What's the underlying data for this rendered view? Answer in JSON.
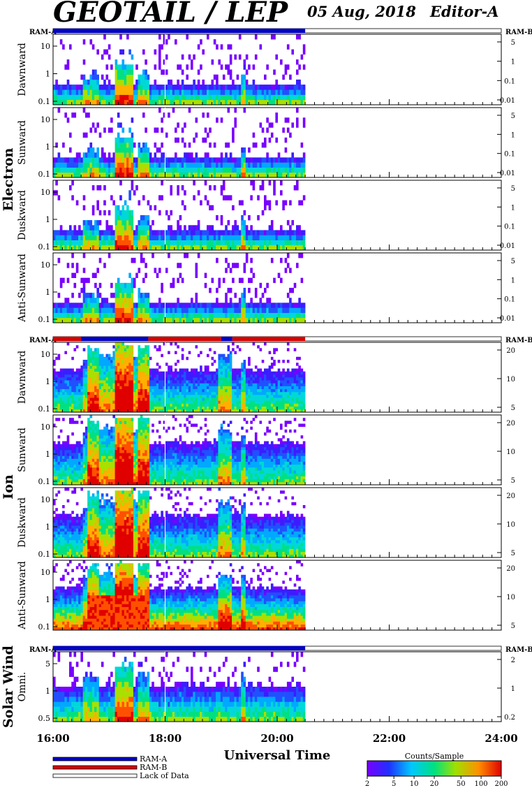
{
  "header": {
    "title": "GEOTAIL / LEP",
    "date": "05 Aug, 2018",
    "editor": "Editor-A"
  },
  "chart_data": {
    "type": "heatmap",
    "xlabel": "Universal Time",
    "x_ticks": [
      "16:00",
      "18:00",
      "20:00",
      "22:00",
      "24:00"
    ],
    "x_range_hours": [
      16,
      24
    ],
    "data_end_hour": 20.5,
    "ram_markers": {
      "left": "RAM-A",
      "right": "RAM-B"
    },
    "groups": [
      {
        "name": "Electron",
        "panels": [
          "Dawnward",
          "Sunward",
          "Duskward",
          "Anti-Sunward"
        ],
        "left_ticks": [
          "0.1",
          "1",
          "10"
        ],
        "right_ticks": [
          "0.01",
          "0.1",
          "1",
          "5"
        ],
        "ram_bar": [
          {
            "from": 16,
            "to": 20.5,
            "mode": "RAM-A"
          }
        ]
      },
      {
        "name": "Ion",
        "panels": [
          "Dawnward",
          "Sunward",
          "Duskward",
          "Anti-Sunward"
        ],
        "left_ticks": [
          "0.1",
          "1",
          "10"
        ],
        "right_ticks": [
          "5",
          "10",
          "20"
        ],
        "ram_bar": [
          {
            "from": 16,
            "to": 16.5,
            "mode": "RAM-B"
          },
          {
            "from": 16.5,
            "to": 17.7,
            "mode": "RAM-A"
          },
          {
            "from": 17.7,
            "to": 19.0,
            "mode": "RAM-B"
          },
          {
            "from": 19.0,
            "to": 19.2,
            "mode": "RAM-A"
          },
          {
            "from": 19.2,
            "to": 20.5,
            "mode": "RAM-B"
          }
        ]
      },
      {
        "name": "Solar Wind",
        "panels": [
          "Omni."
        ],
        "left_ticks": [
          "0.5",
          "1",
          "5"
        ],
        "right_ticks": [
          "0.2",
          "1",
          "2"
        ],
        "ram_bar": [
          {
            "from": 16,
            "to": 20.5,
            "mode": "RAM-A"
          }
        ]
      }
    ],
    "legend": [
      {
        "label": "RAM-A",
        "color": "#0000c8"
      },
      {
        "label": "RAM-B",
        "color": "#d80000"
      },
      {
        "label": "Lack of Data",
        "color": "#ffffff"
      }
    ],
    "colorbar": {
      "title": "Counts/Sample",
      "ticks": [
        "2",
        "5",
        "10",
        "20",
        "50",
        "100",
        "200"
      ],
      "scale": "log"
    }
  }
}
